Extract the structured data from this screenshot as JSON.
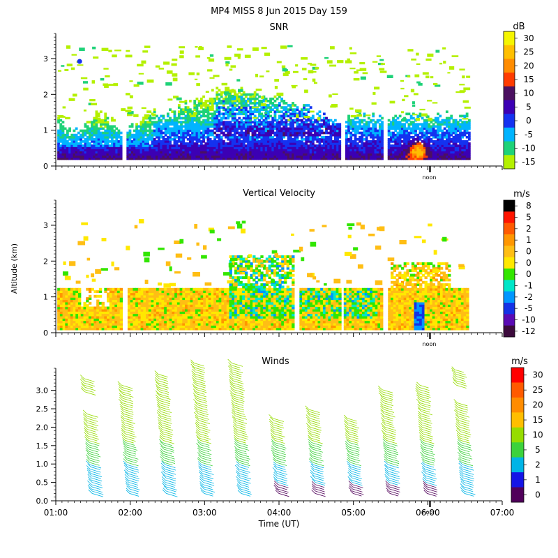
{
  "title": "MP4 MISS    8 Jun 2015 Day 159",
  "xlabel": "Time (UT)",
  "ylabel": "Altitude (km)",
  "noon_label": "noon",
  "time_ticks": [
    "01:00",
    "02:00",
    "03:00",
    "04:00",
    "05:00",
    "06:00",
    "07:00"
  ],
  "chart_data": [
    {
      "type": "heatmap",
      "title": "SNR",
      "unit": "dB",
      "xrange_hours": [
        1,
        7
      ],
      "ylim": [
        0,
        3.7
      ],
      "yticks": [
        "0",
        "1",
        "2",
        "3"
      ],
      "colorbar": {
        "labels": [
          "30",
          "25",
          "20",
          "15",
          "10",
          "5",
          "0",
          "-5",
          "-10",
          "-15"
        ],
        "colors": [
          "#f5f500",
          "#ffbf00",
          "#ff8c00",
          "#ff3c00",
          "#4b1060",
          "#3c00b4",
          "#1432f0",
          "#00b4ff",
          "#1ed278",
          "#b4f000"
        ]
      },
      "data_gaps_hours": [
        [
          1.88,
          1.93
        ],
        [
          4.82,
          4.87
        ],
        [
          5.38,
          5.44
        ]
      ]
    },
    {
      "type": "heatmap",
      "title": "Vertical Velocity",
      "unit": "m/s",
      "xrange_hours": [
        1,
        7
      ],
      "ylim": [
        0,
        3.7
      ],
      "yticks": [
        "0",
        "1",
        "2",
        "3"
      ],
      "colorbar": {
        "labels": [
          "8",
          "5",
          "2",
          "1",
          "0",
          "0",
          "0",
          "-1",
          "-2",
          "-5",
          "-10",
          "-12"
        ],
        "colors": [
          "#000000",
          "#ff1400",
          "#ff5a00",
          "#ff9600",
          "#ffbe14",
          "#ffe800",
          "#32e600",
          "#00e6c8",
          "#0096ff",
          "#1432e6",
          "#5a0ab4",
          "#3c0a3c"
        ]
      },
      "data_gaps_hours": [
        [
          1.88,
          1.93
        ],
        [
          4.2,
          4.25
        ],
        [
          4.82,
          4.87
        ],
        [
          5.38,
          5.44
        ]
      ]
    },
    {
      "type": "wind_barbs",
      "title": "Winds",
      "unit": "m/s",
      "xrange_hours": [
        1,
        7
      ],
      "ylim": [
        0,
        3.6
      ],
      "yticks": [
        "0.0",
        "0.5",
        "1.0",
        "1.5",
        "2.0",
        "2.5",
        "3.0"
      ],
      "colorbar": {
        "labels": [
          "30",
          "25",
          "20",
          "15",
          "10",
          "5",
          "2",
          "1",
          "0"
        ],
        "colors": [
          "#ff0000",
          "#ff5a00",
          "#ff8c00",
          "#ffbe00",
          "#96dc00",
          "#3cd23c",
          "#00b4e6",
          "#1414e6",
          "#50005a"
        ]
      },
      "profiles_hours": [
        1.5,
        2.0,
        2.5,
        3.0,
        3.5,
        4.0,
        4.5,
        5.0,
        5.5,
        6.0,
        6.5
      ]
    }
  ]
}
